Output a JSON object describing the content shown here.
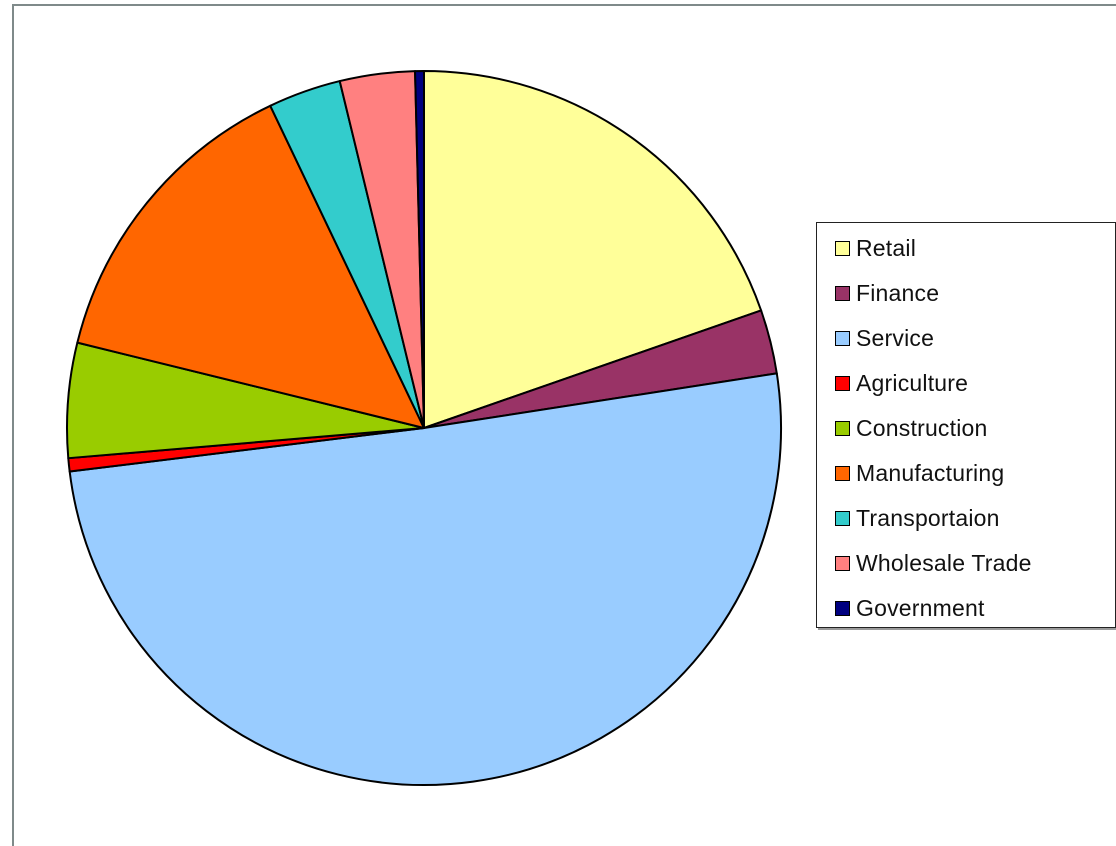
{
  "chart_data": {
    "type": "pie",
    "title": "",
    "legend_position": "right",
    "start": "12 o'clock, clockwise",
    "slices": [
      {
        "label": "Retail",
        "value": 19.7,
        "color": "#ffff99"
      },
      {
        "label": "Finance",
        "value": 2.9,
        "color": "#993366"
      },
      {
        "label": "Service",
        "value": 50.6,
        "color": "#99ccff"
      },
      {
        "label": "Agriculture",
        "value": 0.6,
        "color": "#ff0000"
      },
      {
        "label": "Construction",
        "value": 5.2,
        "color": "#99cc00"
      },
      {
        "label": "Manufacturing",
        "value": 14.1,
        "color": "#ff6600"
      },
      {
        "label": "Transportaion",
        "value": 3.3,
        "color": "#33cccc"
      },
      {
        "label": "Wholesale Trade",
        "value": 3.4,
        "color": "#ff8080"
      },
      {
        "label": "Government",
        "value": 0.4,
        "color": "#000080"
      }
    ]
  }
}
